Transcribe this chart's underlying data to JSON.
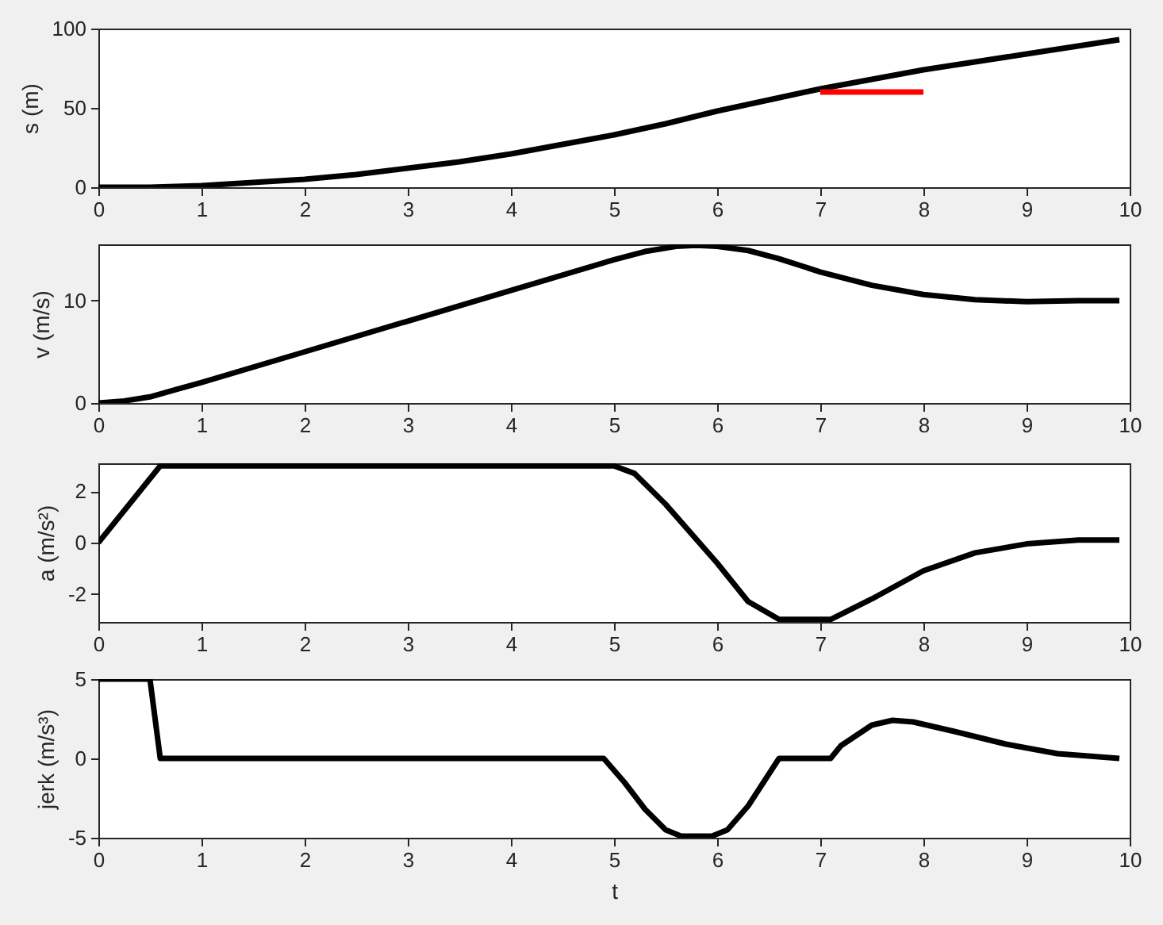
{
  "chart_data": [
    {
      "type": "line",
      "ylabel": "s (m)",
      "xlim": [
        0,
        10
      ],
      "xticks": [
        0,
        1,
        2,
        3,
        4,
        5,
        6,
        7,
        8,
        9,
        10
      ],
      "ylim": [
        0,
        100
      ],
      "yticks": [
        0,
        50,
        100
      ],
      "series": [
        {
          "color": "#000000",
          "x": [
            0,
            0.5,
            1,
            1.5,
            2,
            2.5,
            3,
            3.5,
            4,
            4.5,
            5,
            5.5,
            6,
            6.5,
            7,
            7.5,
            8,
            8.5,
            9,
            9.5,
            9.9
          ],
          "values": [
            0,
            0,
            1,
            3,
            5,
            8,
            12,
            16,
            21,
            27,
            33,
            40,
            48,
            55,
            62,
            68,
            74,
            79,
            84,
            89,
            93
          ]
        },
        {
          "color": "#ff0000",
          "x": [
            7,
            8
          ],
          "values": [
            60,
            60
          ]
        }
      ]
    },
    {
      "type": "line",
      "ylabel": "v (m/s)",
      "xlim": [
        0,
        10
      ],
      "xticks": [
        0,
        1,
        2,
        3,
        4,
        5,
        6,
        7,
        8,
        9,
        10
      ],
      "ylim": [
        0,
        15.5
      ],
      "yticks": [
        0,
        10
      ],
      "series": [
        {
          "color": "#000000",
          "x": [
            0,
            0.25,
            0.5,
            0.75,
            1,
            2,
            3,
            4,
            5,
            5.3,
            5.6,
            5.8,
            6,
            6.3,
            6.6,
            7,
            7.5,
            8,
            8.5,
            9,
            9.5,
            9.9
          ],
          "values": [
            0,
            0.2,
            0.6,
            1.3,
            2,
            5,
            8,
            11,
            14,
            14.8,
            15.3,
            15.4,
            15.3,
            14.9,
            14.1,
            12.8,
            11.5,
            10.6,
            10.1,
            9.9,
            10,
            10
          ]
        }
      ]
    },
    {
      "type": "line",
      "ylabel": "a (m/s²)",
      "xlim": [
        0,
        10
      ],
      "xticks": [
        0,
        1,
        2,
        3,
        4,
        5,
        6,
        7,
        8,
        9,
        10
      ],
      "ylim": [
        -3.1,
        3.1
      ],
      "yticks": [
        -2,
        0,
        2
      ],
      "series": [
        {
          "color": "#000000",
          "x": [
            0,
            0.6,
            5,
            5.2,
            5.5,
            6,
            6.3,
            6.6,
            7.1,
            7.5,
            8,
            8.5,
            9,
            9.5,
            9.9
          ],
          "values": [
            0,
            3,
            3,
            2.7,
            1.5,
            -0.8,
            -2.3,
            -3,
            -3,
            -2.2,
            -1.1,
            -0.4,
            -0.05,
            0.1,
            0.1
          ]
        }
      ]
    },
    {
      "type": "line",
      "xlabel": "t",
      "ylabel": "jerk (m/s³)",
      "xlim": [
        0,
        10
      ],
      "xticks": [
        0,
        1,
        2,
        3,
        4,
        5,
        6,
        7,
        8,
        9,
        10
      ],
      "ylim": [
        -5,
        5
      ],
      "yticks": [
        -5,
        0,
        5
      ],
      "series": [
        {
          "color": "#000000",
          "x": [
            0,
            0.5,
            0.6,
            4.9,
            5.1,
            5.3,
            5.5,
            5.65,
            5.95,
            6.1,
            6.3,
            6.6,
            7.1,
            7.2,
            7.5,
            7.7,
            7.9,
            8.3,
            8.8,
            9.3,
            9.9
          ],
          "values": [
            5,
            5,
            0,
            0,
            -1.5,
            -3.2,
            -4.5,
            -4.9,
            -4.9,
            -4.5,
            -3,
            0,
            0,
            0.8,
            2.1,
            2.4,
            2.3,
            1.7,
            0.9,
            0.3,
            0
          ]
        }
      ]
    }
  ]
}
